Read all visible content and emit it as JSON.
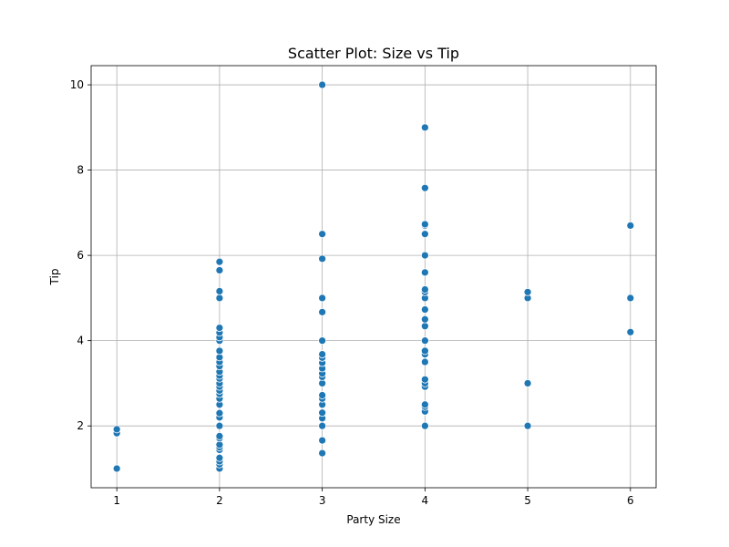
{
  "chart_data": {
    "type": "scatter",
    "title": "Scatter Plot: Size vs Tip",
    "xlabel": "Party Size",
    "ylabel": "Tip",
    "xlim": [
      0.75,
      6.25
    ],
    "ylim": [
      0.55,
      10.45
    ],
    "xticks": [
      1,
      2,
      3,
      4,
      5,
      6
    ],
    "yticks": [
      2,
      4,
      6,
      8,
      10
    ],
    "grid": true,
    "point_color": "#1f77b4",
    "points": [
      {
        "x": 1,
        "y": 1.0
      },
      {
        "x": 1,
        "y": 1.83
      },
      {
        "x": 1,
        "y": 1.92
      },
      {
        "x": 2,
        "y": 1.0
      },
      {
        "x": 2,
        "y": 1.1
      },
      {
        "x": 2,
        "y": 1.17
      },
      {
        "x": 2,
        "y": 1.25
      },
      {
        "x": 2,
        "y": 1.44
      },
      {
        "x": 2,
        "y": 1.5
      },
      {
        "x": 2,
        "y": 1.56
      },
      {
        "x": 2,
        "y": 1.71
      },
      {
        "x": 2,
        "y": 1.76
      },
      {
        "x": 2,
        "y": 2.0
      },
      {
        "x": 2,
        "y": 2.2
      },
      {
        "x": 2,
        "y": 2.3
      },
      {
        "x": 2,
        "y": 2.5
      },
      {
        "x": 2,
        "y": 2.64
      },
      {
        "x": 2,
        "y": 2.75
      },
      {
        "x": 2,
        "y": 2.83
      },
      {
        "x": 2,
        "y": 2.92
      },
      {
        "x": 2,
        "y": 3.0
      },
      {
        "x": 2,
        "y": 3.11
      },
      {
        "x": 2,
        "y": 3.18
      },
      {
        "x": 2,
        "y": 3.27
      },
      {
        "x": 2,
        "y": 3.4
      },
      {
        "x": 2,
        "y": 3.5
      },
      {
        "x": 2,
        "y": 3.61
      },
      {
        "x": 2,
        "y": 3.76
      },
      {
        "x": 2,
        "y": 4.0
      },
      {
        "x": 2,
        "y": 4.08
      },
      {
        "x": 2,
        "y": 4.19
      },
      {
        "x": 2,
        "y": 4.3
      },
      {
        "x": 2,
        "y": 5.0
      },
      {
        "x": 2,
        "y": 5.16
      },
      {
        "x": 2,
        "y": 5.65
      },
      {
        "x": 2,
        "y": 5.85
      },
      {
        "x": 3,
        "y": 1.36
      },
      {
        "x": 3,
        "y": 1.66
      },
      {
        "x": 3,
        "y": 2.0
      },
      {
        "x": 3,
        "y": 2.18
      },
      {
        "x": 3,
        "y": 2.31
      },
      {
        "x": 3,
        "y": 2.5
      },
      {
        "x": 3,
        "y": 2.64
      },
      {
        "x": 3,
        "y": 2.72
      },
      {
        "x": 3,
        "y": 3.0
      },
      {
        "x": 3,
        "y": 3.15
      },
      {
        "x": 3,
        "y": 3.23
      },
      {
        "x": 3,
        "y": 3.35
      },
      {
        "x": 3,
        "y": 3.48
      },
      {
        "x": 3,
        "y": 3.6
      },
      {
        "x": 3,
        "y": 3.68
      },
      {
        "x": 3,
        "y": 4.0
      },
      {
        "x": 3,
        "y": 4.67
      },
      {
        "x": 3,
        "y": 5.0
      },
      {
        "x": 3,
        "y": 5.92
      },
      {
        "x": 3,
        "y": 6.5
      },
      {
        "x": 3,
        "y": 10.0
      },
      {
        "x": 4,
        "y": 2.0
      },
      {
        "x": 4,
        "y": 2.34
      },
      {
        "x": 4,
        "y": 2.45
      },
      {
        "x": 4,
        "y": 2.5
      },
      {
        "x": 4,
        "y": 2.92
      },
      {
        "x": 4,
        "y": 3.0
      },
      {
        "x": 4,
        "y": 3.09
      },
      {
        "x": 4,
        "y": 3.5
      },
      {
        "x": 4,
        "y": 3.68
      },
      {
        "x": 4,
        "y": 3.76
      },
      {
        "x": 4,
        "y": 4.0
      },
      {
        "x": 4,
        "y": 4.34
      },
      {
        "x": 4,
        "y": 4.5
      },
      {
        "x": 4,
        "y": 4.73
      },
      {
        "x": 4,
        "y": 5.0
      },
      {
        "x": 4,
        "y": 5.14
      },
      {
        "x": 4,
        "y": 5.2
      },
      {
        "x": 4,
        "y": 5.6
      },
      {
        "x": 4,
        "y": 6.0
      },
      {
        "x": 4,
        "y": 6.5
      },
      {
        "x": 4,
        "y": 6.7
      },
      {
        "x": 4,
        "y": 6.73
      },
      {
        "x": 4,
        "y": 7.58
      },
      {
        "x": 4,
        "y": 9.0
      },
      {
        "x": 5,
        "y": 2.0
      },
      {
        "x": 5,
        "y": 3.0
      },
      {
        "x": 5,
        "y": 5.0
      },
      {
        "x": 5,
        "y": 5.14
      },
      {
        "x": 6,
        "y": 4.2
      },
      {
        "x": 6,
        "y": 5.0
      },
      {
        "x": 6,
        "y": 6.7
      }
    ]
  }
}
